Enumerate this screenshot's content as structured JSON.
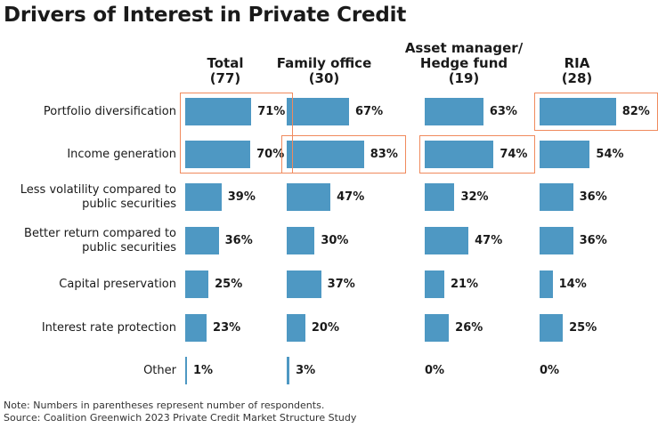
{
  "title": "Drivers of Interest in Private Credit",
  "groups": [
    {
      "line1": "",
      "line2": "Total",
      "line3": "(77)"
    },
    {
      "line1": "",
      "line2": "Family office",
      "line3": "(30)"
    },
    {
      "line1": "Asset manager/",
      "line2": "Hedge fund",
      "line3": "(19)"
    },
    {
      "line1": "",
      "line2": "RIA",
      "line3": "(28)"
    }
  ],
  "rows": [
    {
      "line1": "Portfolio diversification",
      "line2": ""
    },
    {
      "line1": "Income generation",
      "line2": ""
    },
    {
      "line1": "Less volatility compared to",
      "line2": "public securities"
    },
    {
      "line1": "Better return compared to",
      "line2": "public securities"
    },
    {
      "line1": "Capital preservation",
      "line2": ""
    },
    {
      "line1": "Interest rate protection",
      "line2": ""
    },
    {
      "line1": "Other",
      "line2": ""
    }
  ],
  "note": "Note: Numbers in parentheses represent number of respondents.",
  "source": "Source: Coalition Greenwich 2023 Private Credit Market Structure Study",
  "colors": {
    "bar": "#4e98c3",
    "highlight": "#f08a5d"
  },
  "chart_data": {
    "type": "bar",
    "orientation": "horizontal",
    "unit": "%",
    "categories": [
      "Portfolio diversification",
      "Income generation",
      "Less volatility compared to public securities",
      "Better return compared to public securities",
      "Capital preservation",
      "Interest rate protection",
      "Other"
    ],
    "series": [
      {
        "name": "Total (77)",
        "values": [
          71,
          70,
          39,
          36,
          25,
          23,
          1
        ]
      },
      {
        "name": "Family office (30)",
        "values": [
          67,
          83,
          47,
          30,
          37,
          20,
          3
        ]
      },
      {
        "name": "Asset manager/Hedge fund (19)",
        "values": [
          63,
          74,
          32,
          47,
          21,
          26,
          0
        ]
      },
      {
        "name": "RIA (28)",
        "values": [
          82,
          54,
          36,
          36,
          14,
          25,
          0
        ]
      }
    ],
    "value_labels": [
      [
        "71%",
        "70%",
        "39%",
        "36%",
        "25%",
        "23%",
        "1%"
      ],
      [
        "67%",
        "83%",
        "47%",
        "30%",
        "37%",
        "20%",
        "3%"
      ],
      [
        "63%",
        "74%",
        "32%",
        "47%",
        "21%",
        "26%",
        "0%"
      ],
      [
        "82%",
        "54%",
        "36%",
        "36%",
        "14%",
        "25%",
        "0%"
      ]
    ],
    "highlighted": [
      {
        "series": 0,
        "categories": [
          0,
          1
        ]
      },
      {
        "series": 1,
        "categories": [
          1
        ]
      },
      {
        "series": 2,
        "categories": [
          1
        ]
      },
      {
        "series": 3,
        "categories": [
          0
        ]
      }
    ],
    "xlim": [
      0,
      100
    ],
    "grid": false,
    "legend": "none"
  }
}
